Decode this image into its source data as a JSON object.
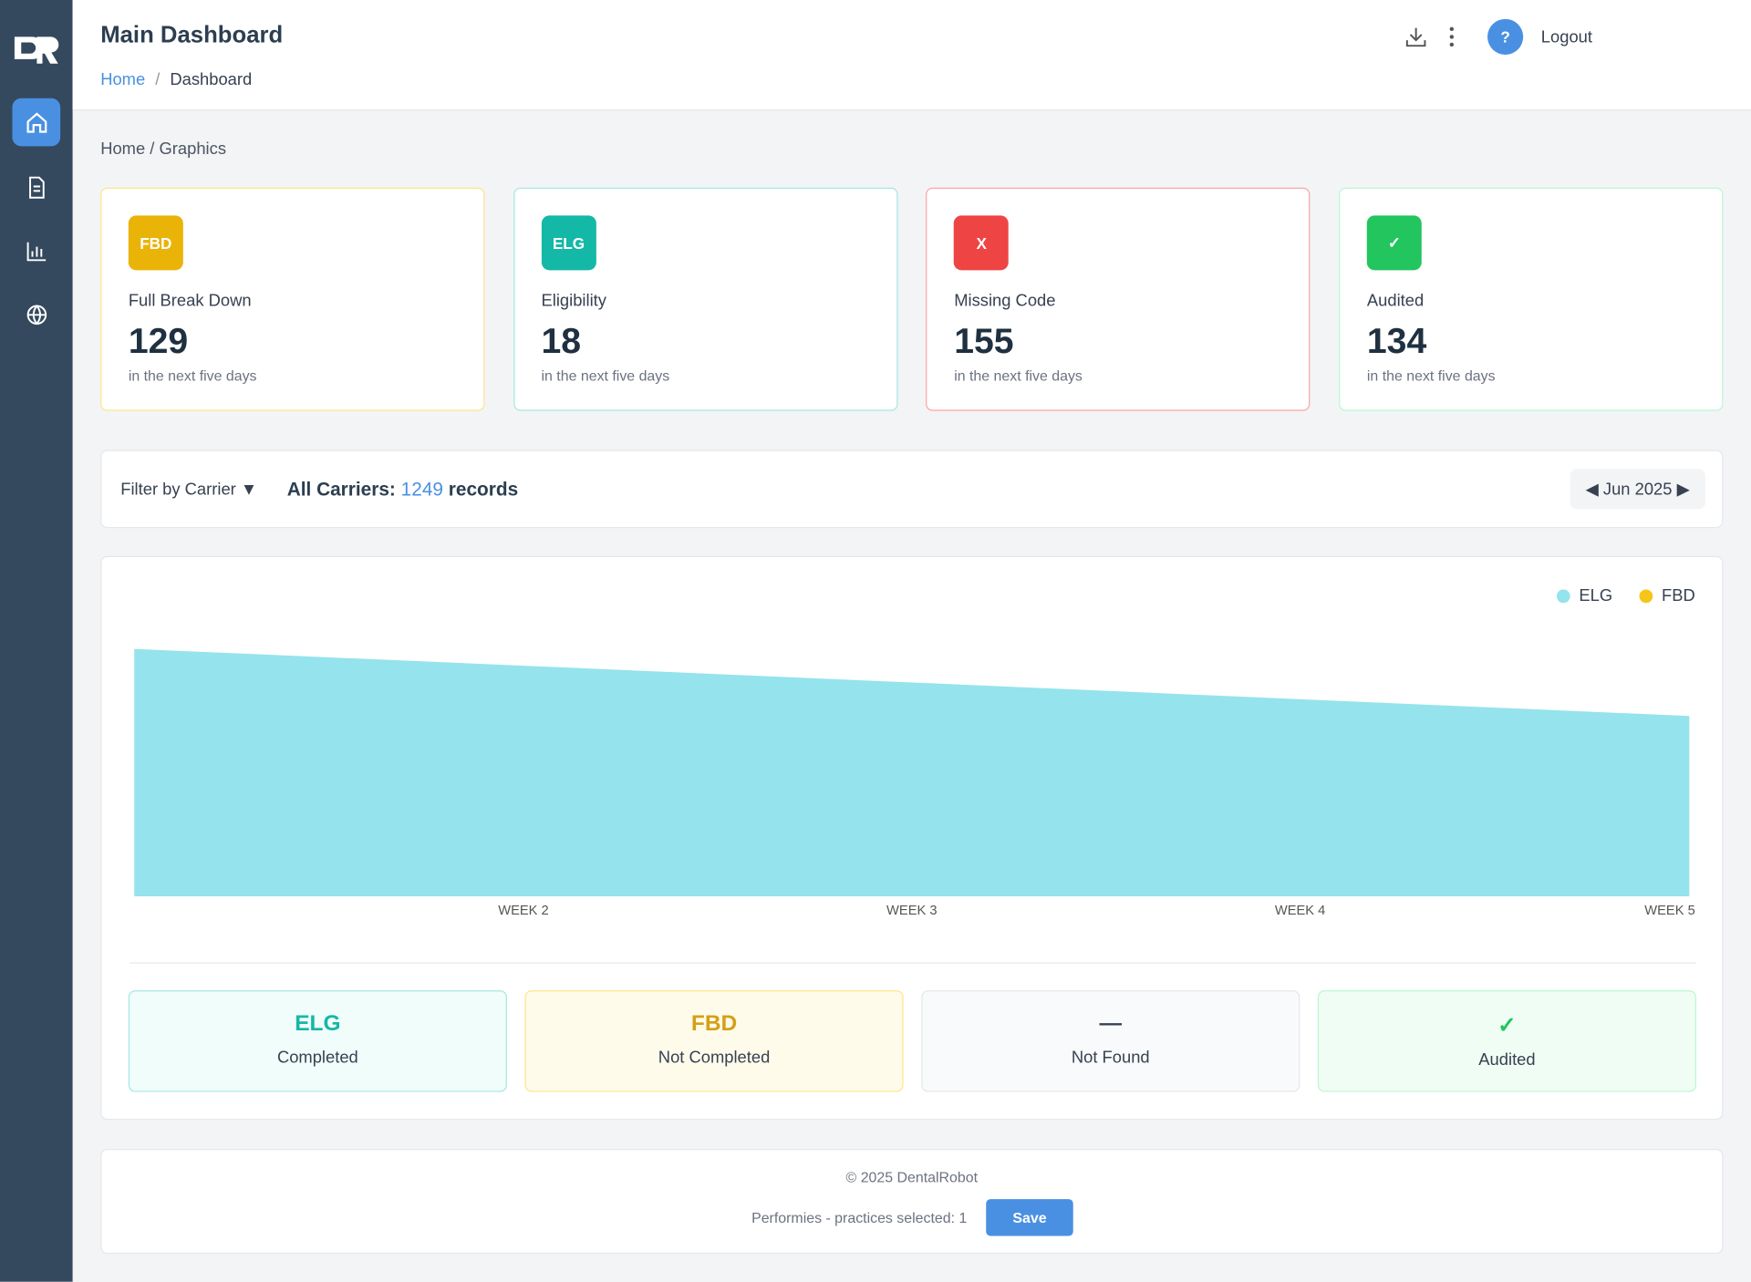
{
  "header": {
    "title": "Main Dashboard",
    "breadcrumb": [
      "Home",
      "Dashboard"
    ],
    "help": "?",
    "logout": "Logout"
  },
  "subcrumb": "Home / Graphics",
  "cards": [
    {
      "badge": "FBD",
      "label": "Full Break Down",
      "value": "129",
      "note": "in the next five days"
    },
    {
      "badge": "ELG",
      "label": "Eligibility",
      "value": "18",
      "note": "in the next five days"
    },
    {
      "badge": "X",
      "label": "Missing Code",
      "value": "155",
      "note": "in the next five days"
    },
    {
      "badge": "✓",
      "label": "Audited",
      "value": "134",
      "note": "in the next five days"
    }
  ],
  "filter": {
    "label": "Filter by Carrier ▼",
    "prefix": "All Carriers:",
    "count": "1249",
    "suffix": "records",
    "month": "◀ Jun 2025 ▶"
  },
  "chart_data": {
    "type": "area",
    "categories": [
      null,
      "WEEK 2",
      "WEEK 3",
      "WEEK 4",
      "WEEK 5"
    ],
    "ylim": [
      0,
      24
    ],
    "series": [
      {
        "name": "ELG",
        "color": "#95e3ec",
        "values": [
          22,
          20.5,
          19,
          17.5,
          16
        ]
      },
      {
        "name": "FBD",
        "color": "#f5c518",
        "values": [
          0,
          0,
          0,
          0,
          0
        ]
      }
    ]
  },
  "status": [
    {
      "code": "ELG",
      "label": "Completed"
    },
    {
      "code": "FBD",
      "label": "Not Completed"
    },
    {
      "code": "—",
      "label": "Not Found"
    },
    {
      "code": "✓",
      "label": "Audited"
    }
  ],
  "footer": {
    "copyright": "© 2025 DentalRobot",
    "selection": "Performies - practices selected: 1",
    "save": "Save"
  }
}
